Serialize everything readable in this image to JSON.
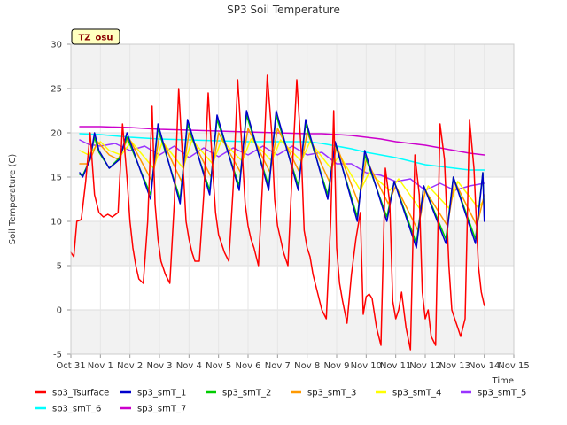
{
  "chart_data": {
    "type": "line",
    "title": "SP3 Soil Temperature",
    "xlabel": "Time",
    "ylabel": "Soil Temperature (C)",
    "ylim": [
      -5,
      30
    ],
    "xlim": [
      0,
      15
    ],
    "yticks": [
      -5,
      0,
      5,
      10,
      15,
      20,
      25,
      30
    ],
    "xticks": [
      "Oct 31",
      "Nov 1",
      "Nov 2",
      "Nov 3",
      "Nov 4",
      "Nov 5",
      "Nov 6",
      "Nov 7",
      "Nov 8",
      "Nov 9",
      "Nov 10",
      "Nov 11",
      "Nov 12",
      "Nov 13",
      "Nov 14",
      "Nov 15"
    ],
    "grid": true,
    "legend_position": "bottom",
    "annotation": "TZ_osu",
    "series": [
      {
        "name": "sp3_Tsurface",
        "color": "#ff0000",
        "x": [
          0.0,
          0.1,
          0.2,
          0.35,
          0.5,
          0.65,
          0.8,
          0.95,
          1.1,
          1.25,
          1.4,
          1.6,
          1.75,
          1.9,
          2.0,
          2.1,
          2.2,
          2.3,
          2.45,
          2.6,
          2.75,
          2.85,
          2.95,
          3.05,
          3.2,
          3.35,
          3.5,
          3.65,
          3.8,
          3.9,
          4.0,
          4.1,
          4.2,
          4.35,
          4.5,
          4.65,
          4.8,
          4.9,
          5.0,
          5.1,
          5.2,
          5.35,
          5.5,
          5.65,
          5.8,
          5.9,
          6.0,
          6.1,
          6.2,
          6.35,
          6.5,
          6.65,
          6.8,
          6.9,
          7.0,
          7.1,
          7.2,
          7.35,
          7.5,
          7.65,
          7.8,
          7.9,
          8.0,
          8.1,
          8.2,
          8.35,
          8.5,
          8.65,
          8.8,
          8.9,
          9.0,
          9.1,
          9.2,
          9.35,
          9.5,
          9.65,
          9.8,
          9.9,
          10.0,
          10.1,
          10.2,
          10.35,
          10.5,
          10.65,
          10.8,
          10.9,
          11.0,
          11.1,
          11.2,
          11.35,
          11.5,
          11.65,
          11.8,
          11.9,
          12.0,
          12.1,
          12.2,
          12.35,
          12.5,
          12.65,
          12.8,
          12.9,
          13.0,
          13.1,
          13.2,
          13.35,
          13.5,
          13.65,
          13.8,
          13.9,
          14.0
        ],
        "values": [
          6.5,
          6.0,
          10.0,
          10.2,
          14.5,
          20.0,
          13.0,
          11.0,
          10.5,
          10.8,
          10.5,
          11.0,
          21.0,
          15.0,
          10.0,
          7.0,
          5.0,
          3.5,
          3.0,
          10.0,
          23.0,
          12.0,
          8.0,
          5.5,
          4.0,
          3.0,
          12.0,
          25.0,
          16.0,
          10.0,
          8.0,
          6.5,
          5.5,
          5.5,
          13.0,
          24.5,
          16.0,
          11.0,
          8.5,
          7.5,
          6.5,
          5.5,
          14.0,
          26.0,
          18.0,
          12.0,
          9.5,
          8.0,
          7.0,
          5.0,
          15.0,
          26.5,
          20.0,
          12.5,
          9.5,
          8.0,
          6.5,
          5.0,
          16.0,
          26.0,
          18.0,
          9.0,
          7.0,
          6.0,
          4.0,
          2.0,
          0.0,
          -1.0,
          10.0,
          22.5,
          7.0,
          3.0,
          1.0,
          -1.5,
          4.0,
          8.0,
          11.0,
          -0.5,
          1.5,
          1.8,
          1.3,
          -2.0,
          -4.0,
          16.0,
          12.0,
          1.0,
          -1.0,
          0.0,
          2.0,
          -2.0,
          -4.5,
          17.5,
          13.0,
          2.0,
          -1.0,
          0.0,
          -3.0,
          -4.0,
          21.0,
          17.0,
          5.0,
          0.0,
          -1.0,
          -2.0,
          -3.0,
          -1.0,
          21.5,
          16.0,
          5.0,
          2.0,
          0.5
        ]
      },
      {
        "name": "sp3_smT_1",
        "color": "#0000cc",
        "x": [
          0.3,
          0.4,
          0.5,
          0.65,
          0.8,
          0.95,
          1.3,
          1.65,
          1.9,
          2.7,
          2.95,
          3.7,
          3.95,
          4.7,
          4.95,
          5.7,
          5.95,
          6.7,
          6.95,
          7.7,
          7.95,
          8.7,
          8.95,
          9.7,
          9.95,
          10.7,
          10.95,
          11.7,
          11.95,
          12.7,
          12.95,
          13.7,
          13.95,
          14.0
        ],
        "values": [
          15.5,
          15.0,
          15.8,
          17.0,
          20.0,
          18.0,
          16.0,
          17.0,
          20.0,
          12.5,
          21.0,
          12.0,
          21.5,
          13.0,
          22.0,
          13.5,
          22.5,
          13.5,
          22.5,
          13.5,
          21.5,
          12.5,
          19.0,
          10.0,
          18.0,
          10.0,
          14.5,
          7.0,
          14.0,
          7.5,
          15.0,
          7.5,
          15.5,
          10.0
        ]
      },
      {
        "name": "sp3_smT_2",
        "color": "#00cc00",
        "x": [
          0.3,
          0.4,
          0.5,
          0.65,
          0.8,
          0.95,
          1.3,
          1.65,
          1.9,
          2.7,
          2.95,
          3.7,
          3.95,
          4.7,
          4.95,
          5.7,
          5.95,
          6.7,
          6.95,
          7.7,
          7.95,
          8.7,
          8.95,
          9.7,
          9.95,
          10.7,
          10.95,
          11.7,
          11.95,
          12.7,
          12.95,
          13.7,
          13.95,
          14.0
        ],
        "values": [
          15.3,
          15.2,
          15.9,
          17.2,
          19.5,
          17.8,
          16.0,
          17.2,
          19.5,
          13.0,
          20.5,
          12.5,
          21.0,
          13.5,
          21.5,
          14.0,
          22.0,
          14.0,
          22.0,
          14.0,
          21.0,
          13.0,
          18.8,
          10.5,
          17.5,
          10.5,
          14.5,
          7.5,
          14.0,
          8.0,
          15.0,
          8.0,
          15.5,
          10.5
        ]
      },
      {
        "name": "sp3_smT_3",
        "color": "#ff9900",
        "x": [
          0.3,
          0.6,
          0.9,
          1.3,
          1.6,
          1.95,
          2.75,
          3.0,
          3.75,
          4.0,
          4.75,
          5.0,
          5.75,
          6.0,
          6.75,
          7.0,
          7.75,
          8.0,
          8.75,
          9.0,
          9.75,
          10.0,
          10.75,
          11.0,
          11.75,
          12.0,
          12.75,
          13.0,
          13.75,
          14.0
        ],
        "values": [
          16.5,
          16.5,
          19.0,
          17.5,
          17.0,
          19.5,
          14.5,
          19.8,
          14.5,
          20.0,
          15.0,
          20.0,
          15.5,
          20.5,
          15.5,
          20.5,
          15.5,
          20.0,
          14.5,
          18.5,
          12.0,
          17.0,
          12.0,
          14.0,
          9.0,
          13.5,
          9.5,
          14.5,
          9.5,
          13.0
        ]
      },
      {
        "name": "sp3_smT_4",
        "color": "#ffff00",
        "x": [
          0.3,
          0.6,
          1.0,
          1.3,
          1.7,
          2.05,
          2.8,
          3.1,
          3.8,
          4.1,
          4.8,
          5.1,
          5.8,
          6.1,
          6.8,
          7.1,
          7.8,
          8.1,
          8.8,
          9.1,
          9.8,
          10.1,
          10.8,
          11.1,
          11.8,
          12.1,
          12.8,
          13.1,
          13.8,
          14.0
        ],
        "values": [
          18.0,
          17.5,
          19.0,
          18.0,
          17.5,
          19.0,
          16.0,
          19.0,
          16.0,
          19.2,
          16.5,
          19.2,
          16.8,
          19.3,
          16.8,
          19.2,
          16.8,
          19.0,
          16.0,
          17.5,
          13.5,
          15.5,
          13.5,
          14.8,
          11.5,
          14.0,
          11.5,
          14.5,
          11.5,
          12.5
        ]
      },
      {
        "name": "sp3_smT_5",
        "color": "#9933ff",
        "x": [
          0.3,
          0.6,
          1.0,
          1.5,
          2.0,
          2.5,
          3.0,
          3.5,
          4.0,
          4.5,
          5.0,
          5.5,
          6.0,
          6.5,
          7.0,
          7.5,
          8.0,
          8.5,
          9.0,
          9.5,
          10.0,
          10.5,
          11.0,
          11.5,
          12.0,
          12.5,
          13.0,
          13.5,
          14.0
        ],
        "values": [
          19.2,
          18.7,
          18.5,
          18.8,
          18.0,
          18.5,
          17.5,
          18.5,
          17.2,
          18.3,
          17.3,
          18.3,
          17.5,
          18.5,
          17.5,
          18.5,
          17.5,
          17.8,
          16.5,
          16.5,
          15.5,
          15.2,
          14.5,
          14.8,
          13.5,
          14.3,
          13.5,
          14.0,
          14.3
        ]
      },
      {
        "name": "sp3_smT_6",
        "color": "#00ffff",
        "x": [
          0.3,
          1.0,
          2.0,
          3.0,
          4.0,
          5.0,
          6.0,
          7.0,
          8.0,
          8.5,
          9.0,
          9.5,
          10.0,
          10.5,
          11.0,
          11.5,
          12.0,
          12.5,
          13.0,
          13.5,
          14.0
        ],
        "values": [
          19.9,
          19.8,
          19.5,
          19.3,
          19.2,
          19.1,
          19.0,
          19.0,
          19.0,
          18.8,
          18.5,
          18.2,
          17.8,
          17.5,
          17.2,
          16.8,
          16.4,
          16.2,
          16.0,
          15.8,
          15.8
        ]
      },
      {
        "name": "sp3_smT_7",
        "color": "#cc00cc",
        "x": [
          0.3,
          1.0,
          2.0,
          3.0,
          4.0,
          5.0,
          6.0,
          7.0,
          8.0,
          8.5,
          9.0,
          9.5,
          10.0,
          10.5,
          11.0,
          11.5,
          12.0,
          12.5,
          13.0,
          13.5,
          14.0
        ],
        "values": [
          20.7,
          20.7,
          20.6,
          20.4,
          20.3,
          20.2,
          20.1,
          20.0,
          19.9,
          19.9,
          19.8,
          19.7,
          19.5,
          19.3,
          19.0,
          18.8,
          18.6,
          18.3,
          18.0,
          17.7,
          17.5
        ]
      }
    ]
  }
}
